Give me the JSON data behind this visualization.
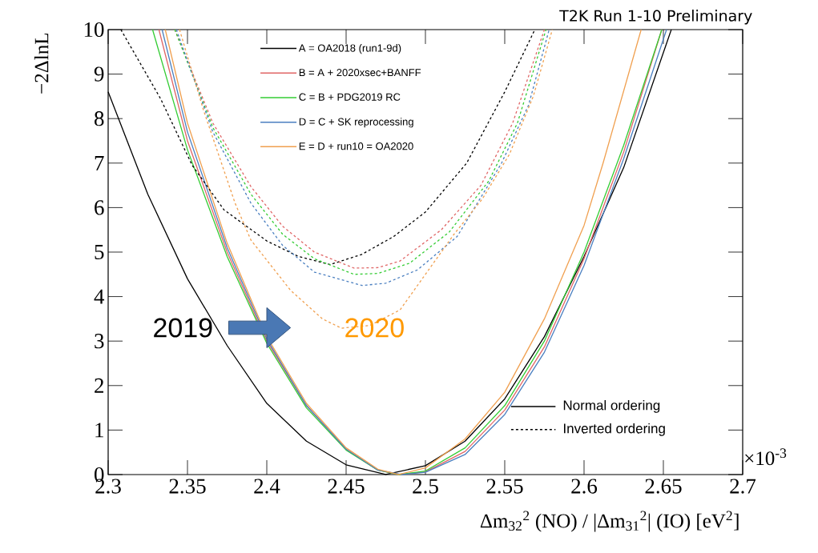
{
  "chart_data": {
    "type": "line",
    "title": "T2K Run 1-10 Preliminary",
    "xlabel": "Δm$_{32}$$^{2}$ (NO) / |Δm$_{31}$$^{2}$| (IO) [eV$^{2}$]",
    "ylabel": "−2ΔlnL",
    "xlim": [
      2.3,
      2.7
    ],
    "ylim": [
      0,
      10
    ],
    "xticks": [
      2.3,
      2.35,
      2.4,
      2.45,
      2.5,
      2.55,
      2.6,
      2.65,
      2.7
    ],
    "yticks": [
      0,
      1,
      2,
      3,
      4,
      5,
      6,
      7,
      8,
      9,
      10
    ],
    "legend": "top",
    "marker": "none",
    "annotations": [
      "2019",
      "2020",
      "×10$^{-3}$",
      "Normal ordering",
      "Inverted ordering"
    ],
    "series": [
      {
        "name": "A = OA2018 (run1-9d)",
        "color": "#000000",
        "line_style": "solid",
        "x": [
          2.3,
          2.325,
          2.35,
          2.375,
          2.4,
          2.425,
          2.45,
          2.475,
          2.5,
          2.525,
          2.55,
          2.575,
          2.6,
          2.625,
          2.655
        ],
        "values": [
          8.6,
          6.3,
          4.4,
          2.9,
          1.6,
          0.75,
          0.22,
          0,
          0.2,
          0.75,
          1.7,
          3.1,
          4.9,
          6.9,
          10
        ]
      },
      {
        "name": "B = A + 2020xsec+BANFF",
        "color": "#e06666",
        "line_style": "solid",
        "x": [
          2.332,
          2.35,
          2.375,
          2.4,
          2.425,
          2.45,
          2.47,
          2.483,
          2.5,
          2.525,
          2.55,
          2.575,
          2.6,
          2.625,
          2.649
        ],
        "values": [
          10,
          7.5,
          5.0,
          3.0,
          1.55,
          0.57,
          0.1,
          0,
          0.06,
          0.52,
          1.45,
          2.87,
          4.85,
          7.25,
          10
        ]
      },
      {
        "name": "C = B + PDG2019 RC",
        "color": "#33cc33",
        "line_style": "solid",
        "x": [
          2.328,
          2.35,
          2.375,
          2.4,
          2.425,
          2.45,
          2.47,
          2.483,
          2.5,
          2.525,
          2.55,
          2.575,
          2.6,
          2.625,
          2.649
        ],
        "values": [
          10,
          7.3,
          4.9,
          2.95,
          1.5,
          0.55,
          0.1,
          0,
          0.08,
          0.6,
          1.55,
          3.0,
          5.0,
          7.4,
          10
        ]
      },
      {
        "name": "D = C + SK reprocessing",
        "color": "#4a7fc0",
        "line_style": "solid",
        "x": [
          2.334,
          2.35,
          2.375,
          2.4,
          2.425,
          2.45,
          2.47,
          2.485,
          2.5,
          2.525,
          2.55,
          2.575,
          2.6,
          2.625,
          2.652
        ],
        "values": [
          10,
          7.7,
          5.1,
          3.05,
          1.55,
          0.57,
          0.1,
          0,
          0.05,
          0.45,
          1.35,
          2.75,
          4.7,
          7.1,
          10
        ]
      },
      {
        "name": "E = D + run10 = OA2020",
        "color": "#f0a050",
        "line_style": "solid",
        "x": [
          2.336,
          2.35,
          2.375,
          2.4,
          2.425,
          2.45,
          2.47,
          2.483,
          2.5,
          2.525,
          2.55,
          2.575,
          2.6,
          2.612,
          2.636
        ],
        "values": [
          10,
          7.9,
          5.2,
          3.1,
          1.6,
          0.6,
          0.12,
          0,
          0.15,
          0.8,
          1.85,
          3.5,
          5.6,
          7.0,
          10
        ]
      },
      {
        "color": "#000000",
        "line_style": "dashed",
        "x": [
          2.308,
          2.333,
          2.353,
          2.373,
          2.4,
          2.42,
          2.44,
          2.46,
          2.48,
          2.5,
          2.526,
          2.55,
          2.569
        ],
        "values": [
          10,
          8.45,
          6.95,
          5.95,
          5.25,
          4.9,
          4.72,
          4.95,
          5.35,
          5.9,
          7.0,
          8.6,
          10
        ]
      },
      {
        "color": "#e06666",
        "line_style": "dashed",
        "x": [
          2.342,
          2.366,
          2.39,
          2.41,
          2.43,
          2.455,
          2.47,
          2.484,
          2.51,
          2.535,
          2.555,
          2.575
        ],
        "values": [
          10,
          7.9,
          6.47,
          5.58,
          5.0,
          4.64,
          4.65,
          4.8,
          5.5,
          6.5,
          7.9,
          10
        ]
      },
      {
        "color": "#33cc33",
        "line_style": "dashed",
        "x": [
          2.342,
          2.366,
          2.39,
          2.41,
          2.43,
          2.455,
          2.47,
          2.49,
          2.515,
          2.54,
          2.558,
          2.576
        ],
        "values": [
          10,
          7.8,
          6.3,
          5.4,
          4.85,
          4.5,
          4.52,
          4.75,
          5.45,
          6.6,
          7.9,
          10
        ]
      },
      {
        "color": "#4a7fc0",
        "line_style": "dashed",
        "x": [
          2.343,
          2.366,
          2.39,
          2.41,
          2.43,
          2.46,
          2.475,
          2.495,
          2.52,
          2.548,
          2.565,
          2.578
        ],
        "values": [
          10,
          7.7,
          6.1,
          5.15,
          4.55,
          4.25,
          4.3,
          4.6,
          5.35,
          7.0,
          8.3,
          10
        ]
      },
      {
        "color": "#f0a050",
        "line_style": "dashed",
        "x": [
          2.345,
          2.36,
          2.38,
          2.39,
          2.415,
          2.435,
          2.447,
          2.465,
          2.484,
          2.501,
          2.518,
          2.536,
          2.553,
          2.568,
          2.58
        ],
        "values": [
          10,
          8.2,
          6.1,
          5.27,
          4.14,
          3.5,
          3.29,
          3.35,
          3.7,
          4.55,
          5.4,
          6.2,
          7.2,
          8.5,
          10
        ]
      }
    ]
  }
}
